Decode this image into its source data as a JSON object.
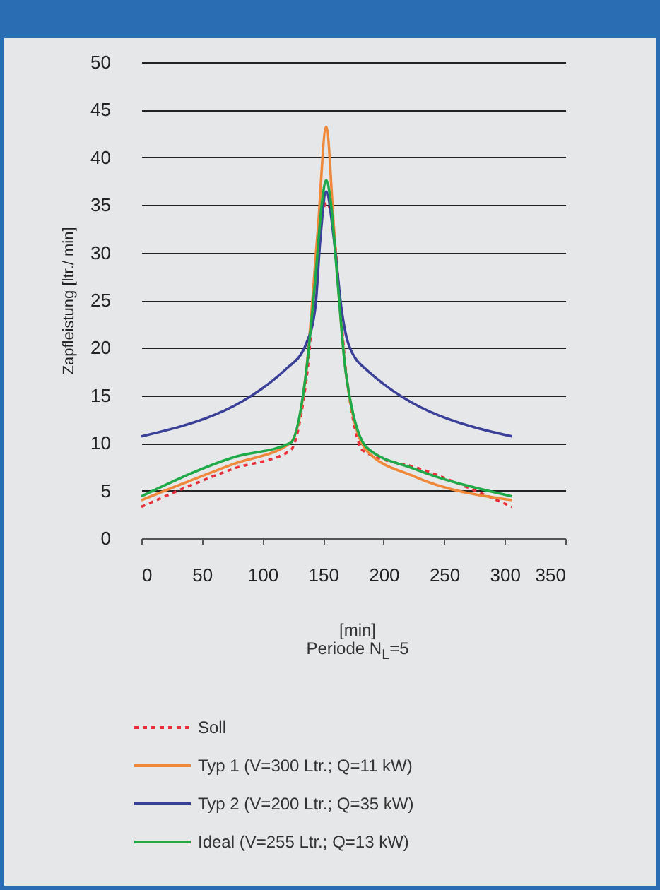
{
  "chart_data": {
    "type": "line",
    "xlabel": "[min]\nPeriode N$_{L}$=5",
    "ylabel": "Zapfleistung [ltr./ min]",
    "xlim": [
      0,
      350
    ],
    "xticks": [
      0,
      50,
      100,
      150,
      200,
      250,
      300,
      350
    ],
    "ylim": [
      0,
      50
    ],
    "yticks": [
      0,
      5,
      10,
      15,
      20,
      25,
      30,
      35,
      40,
      45,
      50
    ],
    "grid": "y",
    "legend": "bottom",
    "series": [
      {
        "name": "Soll",
        "color": "#e8303a",
        "line_style": "dashed",
        "x": [
          0,
          76,
          123,
          136,
          149.5,
          153,
          156.5,
          170,
          183,
          230,
          306
        ],
        "values": [
          3.3,
          7.3,
          9.2,
          16.4,
          34.2,
          35.2,
          34.2,
          16.4,
          9.2,
          7.3,
          3.3
        ]
      },
      {
        "name": "Typ 1 (V=300 Ltr.; Q=11 kW)",
        "color": "#f0883a",
        "line_style": "solid",
        "x": [
          0,
          76,
          123,
          136,
          145.6,
          152.6,
          159.2,
          168.8,
          186,
          225,
          306
        ],
        "values": [
          4.0,
          7.8,
          10.0,
          17.4,
          32.2,
          43.2,
          32.2,
          17.4,
          9.2,
          6.5,
          4.0
        ]
      },
      {
        "name": "Typ 2 (V=200 Ltr.; Q=35 kW)",
        "color": "#3a3f98",
        "line_style": "solid",
        "x": [
          0,
          120.6,
          136,
          143.7,
          147.6,
          152.6,
          159.2,
          165,
          171,
          186.7,
          306
        ],
        "values": [
          10.7,
          17.9,
          20.4,
          24.3,
          31.2,
          36.4,
          31.2,
          24.3,
          20.4,
          17.6,
          10.7
        ]
      },
      {
        "name": "Ideal (V=255 Ltr.; Q=13 kW)",
        "color": "#1faa4a",
        "line_style": "solid",
        "x": [
          0,
          76,
          123,
          136,
          143.7,
          149.5,
          152.6,
          156,
          161.8,
          168.8,
          186.3,
          225,
          306
        ],
        "values": [
          4.4,
          8.5,
          10.0,
          17.4,
          27.3,
          35.7,
          37.6,
          35.7,
          27.3,
          17.4,
          9.5,
          7.3,
          4.4
        ]
      }
    ]
  }
}
